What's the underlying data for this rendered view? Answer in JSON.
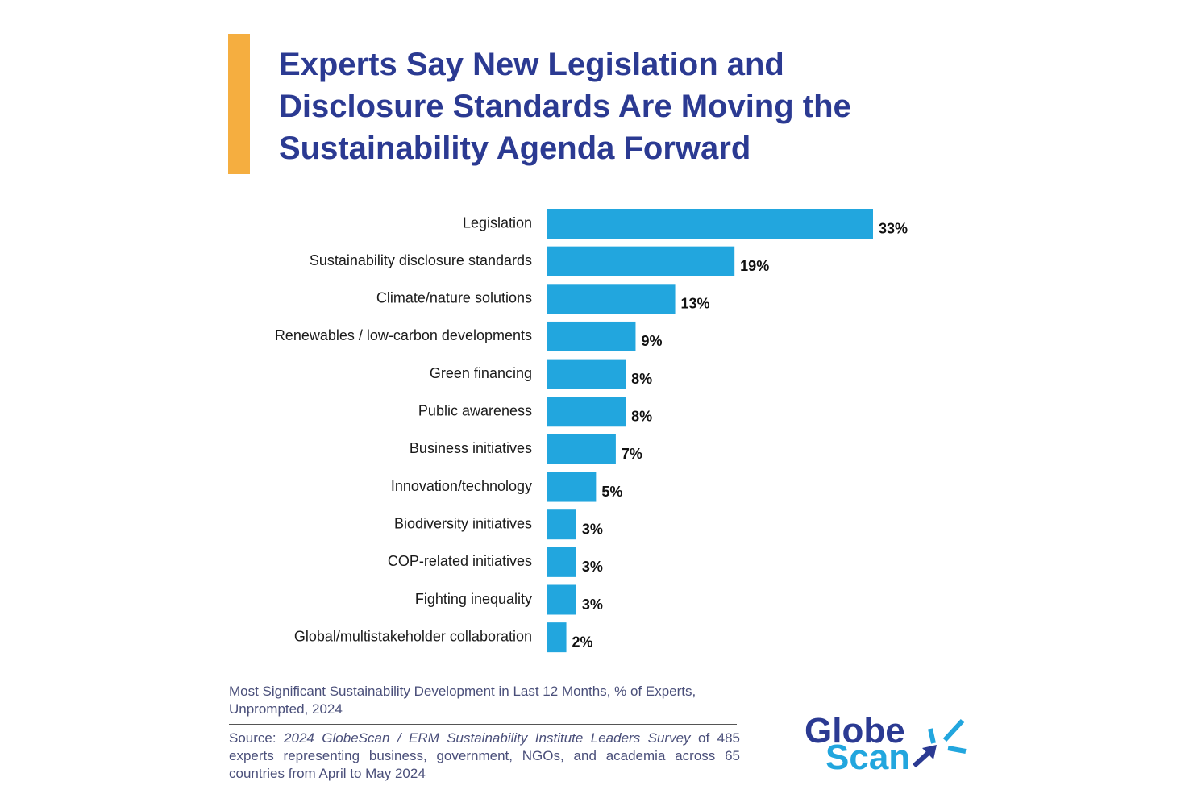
{
  "chart_data": {
    "type": "bar",
    "orientation": "horizontal",
    "title": "Experts Say New Legislation and Disclosure Standards Are Moving the Sustainability Agenda Forward",
    "categories": [
      "Legislation",
      "Sustainability disclosure standards",
      "Climate/nature solutions",
      "Renewables / low-carbon developments",
      "Green financing",
      "Public awareness",
      "Business initiatives",
      "Innovation/technology",
      "Biodiversity initiatives",
      "COP-related initiatives",
      "Fighting inequality",
      "Global/multistakeholder collaboration"
    ],
    "values": [
      33,
      19,
      13,
      9,
      8,
      8,
      7,
      5,
      3,
      3,
      3,
      2
    ],
    "value_labels": [
      "33%",
      "19%",
      "13%",
      "9%",
      "8%",
      "8%",
      "7%",
      "5%",
      "3%",
      "3%",
      "3%",
      "2%"
    ],
    "color": "#22a6de"
  },
  "footnote": {
    "description": "Most Significant Sustainability Development in Last 12 Months, % of Experts, Unprompted, 2024",
    "source_prefix": "Source:",
    "source_title": "2024 GlobeScan / ERM Sustainability Institute Leaders Survey",
    "source_rest": "of 485 experts representing business, government, NGOs, and academia across 65 countries from April to May 2024"
  },
  "logo": {
    "line1": "Globe",
    "line2": "Scan"
  }
}
